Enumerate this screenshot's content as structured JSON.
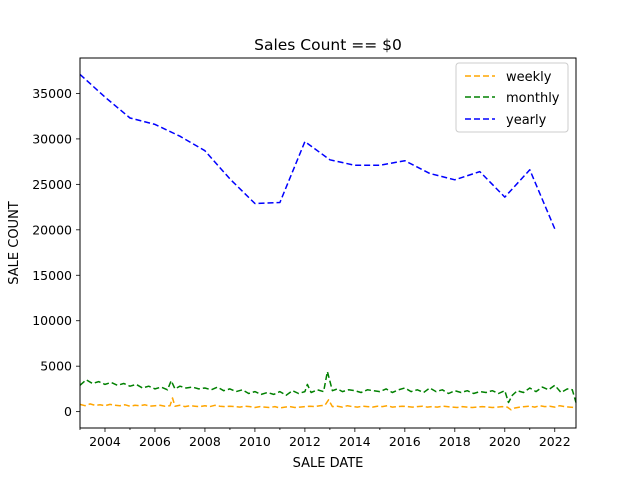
{
  "chart_data": {
    "type": "line",
    "title": "Sales Count == $0",
    "xlabel": "SALE DATE",
    "ylabel": "SALE COUNT",
    "xlim": [
      2003.0,
      2022.85
    ],
    "ylim": [
      -1800,
      38900
    ],
    "x_ticks": [
      2004,
      2006,
      2008,
      2010,
      2012,
      2014,
      2016,
      2018,
      2020,
      2022
    ],
    "x_tick_labels": [
      "2004",
      "2006",
      "2008",
      "2010",
      "2012",
      "2014",
      "2016",
      "2018",
      "2020",
      "2022"
    ],
    "y_ticks": [
      0,
      5000,
      10000,
      15000,
      20000,
      25000,
      30000,
      35000
    ],
    "y_tick_labels": [
      "0",
      "5000",
      "10000",
      "15000",
      "20000",
      "25000",
      "30000",
      "35000"
    ],
    "grid": false,
    "legend_position": "top-right",
    "series": [
      {
        "name": "weekly",
        "color": "#ffa500",
        "style": "dashed",
        "x": [
          2003.0,
          2003.2,
          2003.4,
          2003.6,
          2003.8,
          2004.0,
          2004.2,
          2004.4,
          2004.6,
          2004.8,
          2005.0,
          2005.2,
          2005.4,
          2005.6,
          2005.8,
          2006.0,
          2006.2,
          2006.4,
          2006.6,
          2006.7,
          2006.8,
          2007.0,
          2007.2,
          2007.4,
          2007.6,
          2007.8,
          2008.0,
          2008.2,
          2008.4,
          2008.6,
          2008.8,
          2009.0,
          2009.2,
          2009.4,
          2009.6,
          2009.8,
          2010.0,
          2010.2,
          2010.4,
          2010.6,
          2010.8,
          2011.0,
          2011.2,
          2011.4,
          2011.6,
          2011.8,
          2012.0,
          2012.2,
          2012.4,
          2012.6,
          2012.8,
          2012.95,
          2013.1,
          2013.3,
          2013.5,
          2013.7,
          2013.9,
          2014.1,
          2014.3,
          2014.5,
          2014.7,
          2014.9,
          2015.1,
          2015.3,
          2015.5,
          2015.7,
          2015.9,
          2016.1,
          2016.3,
          2016.5,
          2016.7,
          2016.9,
          2017.1,
          2017.3,
          2017.5,
          2017.7,
          2017.9,
          2018.1,
          2018.3,
          2018.5,
          2018.7,
          2018.9,
          2019.1,
          2019.3,
          2019.5,
          2019.7,
          2019.9,
          2020.1,
          2020.25,
          2020.4,
          2020.6,
          2020.8,
          2021.0,
          2021.2,
          2021.4,
          2021.6,
          2021.8,
          2022.0,
          2022.2,
          2022.4,
          2022.6,
          2022.8
        ],
        "values": [
          800,
          650,
          850,
          700,
          750,
          650,
          800,
          700,
          650,
          750,
          600,
          700,
          650,
          750,
          600,
          650,
          700,
          600,
          650,
          1500,
          600,
          700,
          550,
          650,
          600,
          550,
          650,
          550,
          700,
          600,
          550,
          600,
          550,
          500,
          600,
          550,
          450,
          550,
          500,
          450,
          550,
          400,
          500,
          550,
          450,
          500,
          550,
          600,
          550,
          650,
          700,
          1300,
          550,
          600,
          500,
          650,
          550,
          500,
          600,
          550,
          500,
          600,
          550,
          650,
          500,
          550,
          600,
          550,
          500,
          550,
          600,
          500,
          550,
          500,
          600,
          550,
          500,
          450,
          550,
          500,
          450,
          500,
          550,
          500,
          450,
          500,
          550,
          500,
          200,
          400,
          500,
          550,
          600,
          500,
          650,
          550,
          600,
          500,
          650,
          550,
          500,
          450
        ]
      },
      {
        "name": "monthly",
        "color": "#008000",
        "style": "dashed",
        "x": [
          2003.0,
          2003.25,
          2003.5,
          2003.75,
          2004.0,
          2004.25,
          2004.5,
          2004.75,
          2005.0,
          2005.25,
          2005.5,
          2005.75,
          2006.0,
          2006.25,
          2006.5,
          2006.65,
          2006.8,
          2007.0,
          2007.25,
          2007.5,
          2007.75,
          2008.0,
          2008.25,
          2008.5,
          2008.75,
          2009.0,
          2009.25,
          2009.5,
          2009.75,
          2010.0,
          2010.25,
          2010.5,
          2010.75,
          2011.0,
          2011.25,
          2011.5,
          2011.75,
          2012.0,
          2012.1,
          2012.25,
          2012.5,
          2012.75,
          2012.9,
          2013.1,
          2013.3,
          2013.5,
          2013.75,
          2014.0,
          2014.25,
          2014.5,
          2014.75,
          2015.0,
          2015.25,
          2015.5,
          2015.75,
          2016.0,
          2016.25,
          2016.5,
          2016.75,
          2017.0,
          2017.25,
          2017.5,
          2017.75,
          2018.0,
          2018.25,
          2018.5,
          2018.75,
          2019.0,
          2019.25,
          2019.5,
          2019.75,
          2020.0,
          2020.15,
          2020.3,
          2020.5,
          2020.75,
          2021.0,
          2021.25,
          2021.5,
          2021.75,
          2022.0,
          2022.25,
          2022.5,
          2022.7,
          2022.85
        ],
        "values": [
          2900,
          3500,
          3100,
          3300,
          3000,
          3200,
          2900,
          3100,
          2800,
          3000,
          2600,
          2800,
          2500,
          2700,
          2400,
          3400,
          2500,
          2800,
          2600,
          2700,
          2500,
          2600,
          2400,
          2700,
          2300,
          2500,
          2200,
          2400,
          2000,
          2200,
          1900,
          2100,
          1900,
          2200,
          1800,
          2300,
          2000,
          2200,
          3000,
          2100,
          2400,
          2200,
          4400,
          2300,
          2500,
          2200,
          2400,
          2300,
          2100,
          2400,
          2300,
          2200,
          2500,
          2100,
          2400,
          2600,
          2200,
          2400,
          2100,
          2600,
          2200,
          2400,
          2000,
          2300,
          2100,
          2300,
          2000,
          2200,
          2100,
          2300,
          2000,
          2300,
          1000,
          1800,
          2300,
          2100,
          2600,
          2200,
          2700,
          2400,
          2900,
          2100,
          2500,
          2400,
          1000
        ]
      },
      {
        "name": "yearly",
        "color": "#0000ff",
        "style": "dashed",
        "x": [
          2003,
          2004,
          2005,
          2006,
          2007,
          2008,
          2009,
          2010,
          2011,
          2012,
          2013,
          2014,
          2015,
          2016,
          2017,
          2018,
          2019,
          2020,
          2021,
          2022
        ],
        "values": [
          37100,
          34600,
          32300,
          31600,
          30300,
          28700,
          25600,
          22900,
          23000,
          29700,
          27700,
          27100,
          27100,
          27600,
          26200,
          25500,
          26400,
          23600,
          26600,
          20100
        ]
      }
    ]
  }
}
